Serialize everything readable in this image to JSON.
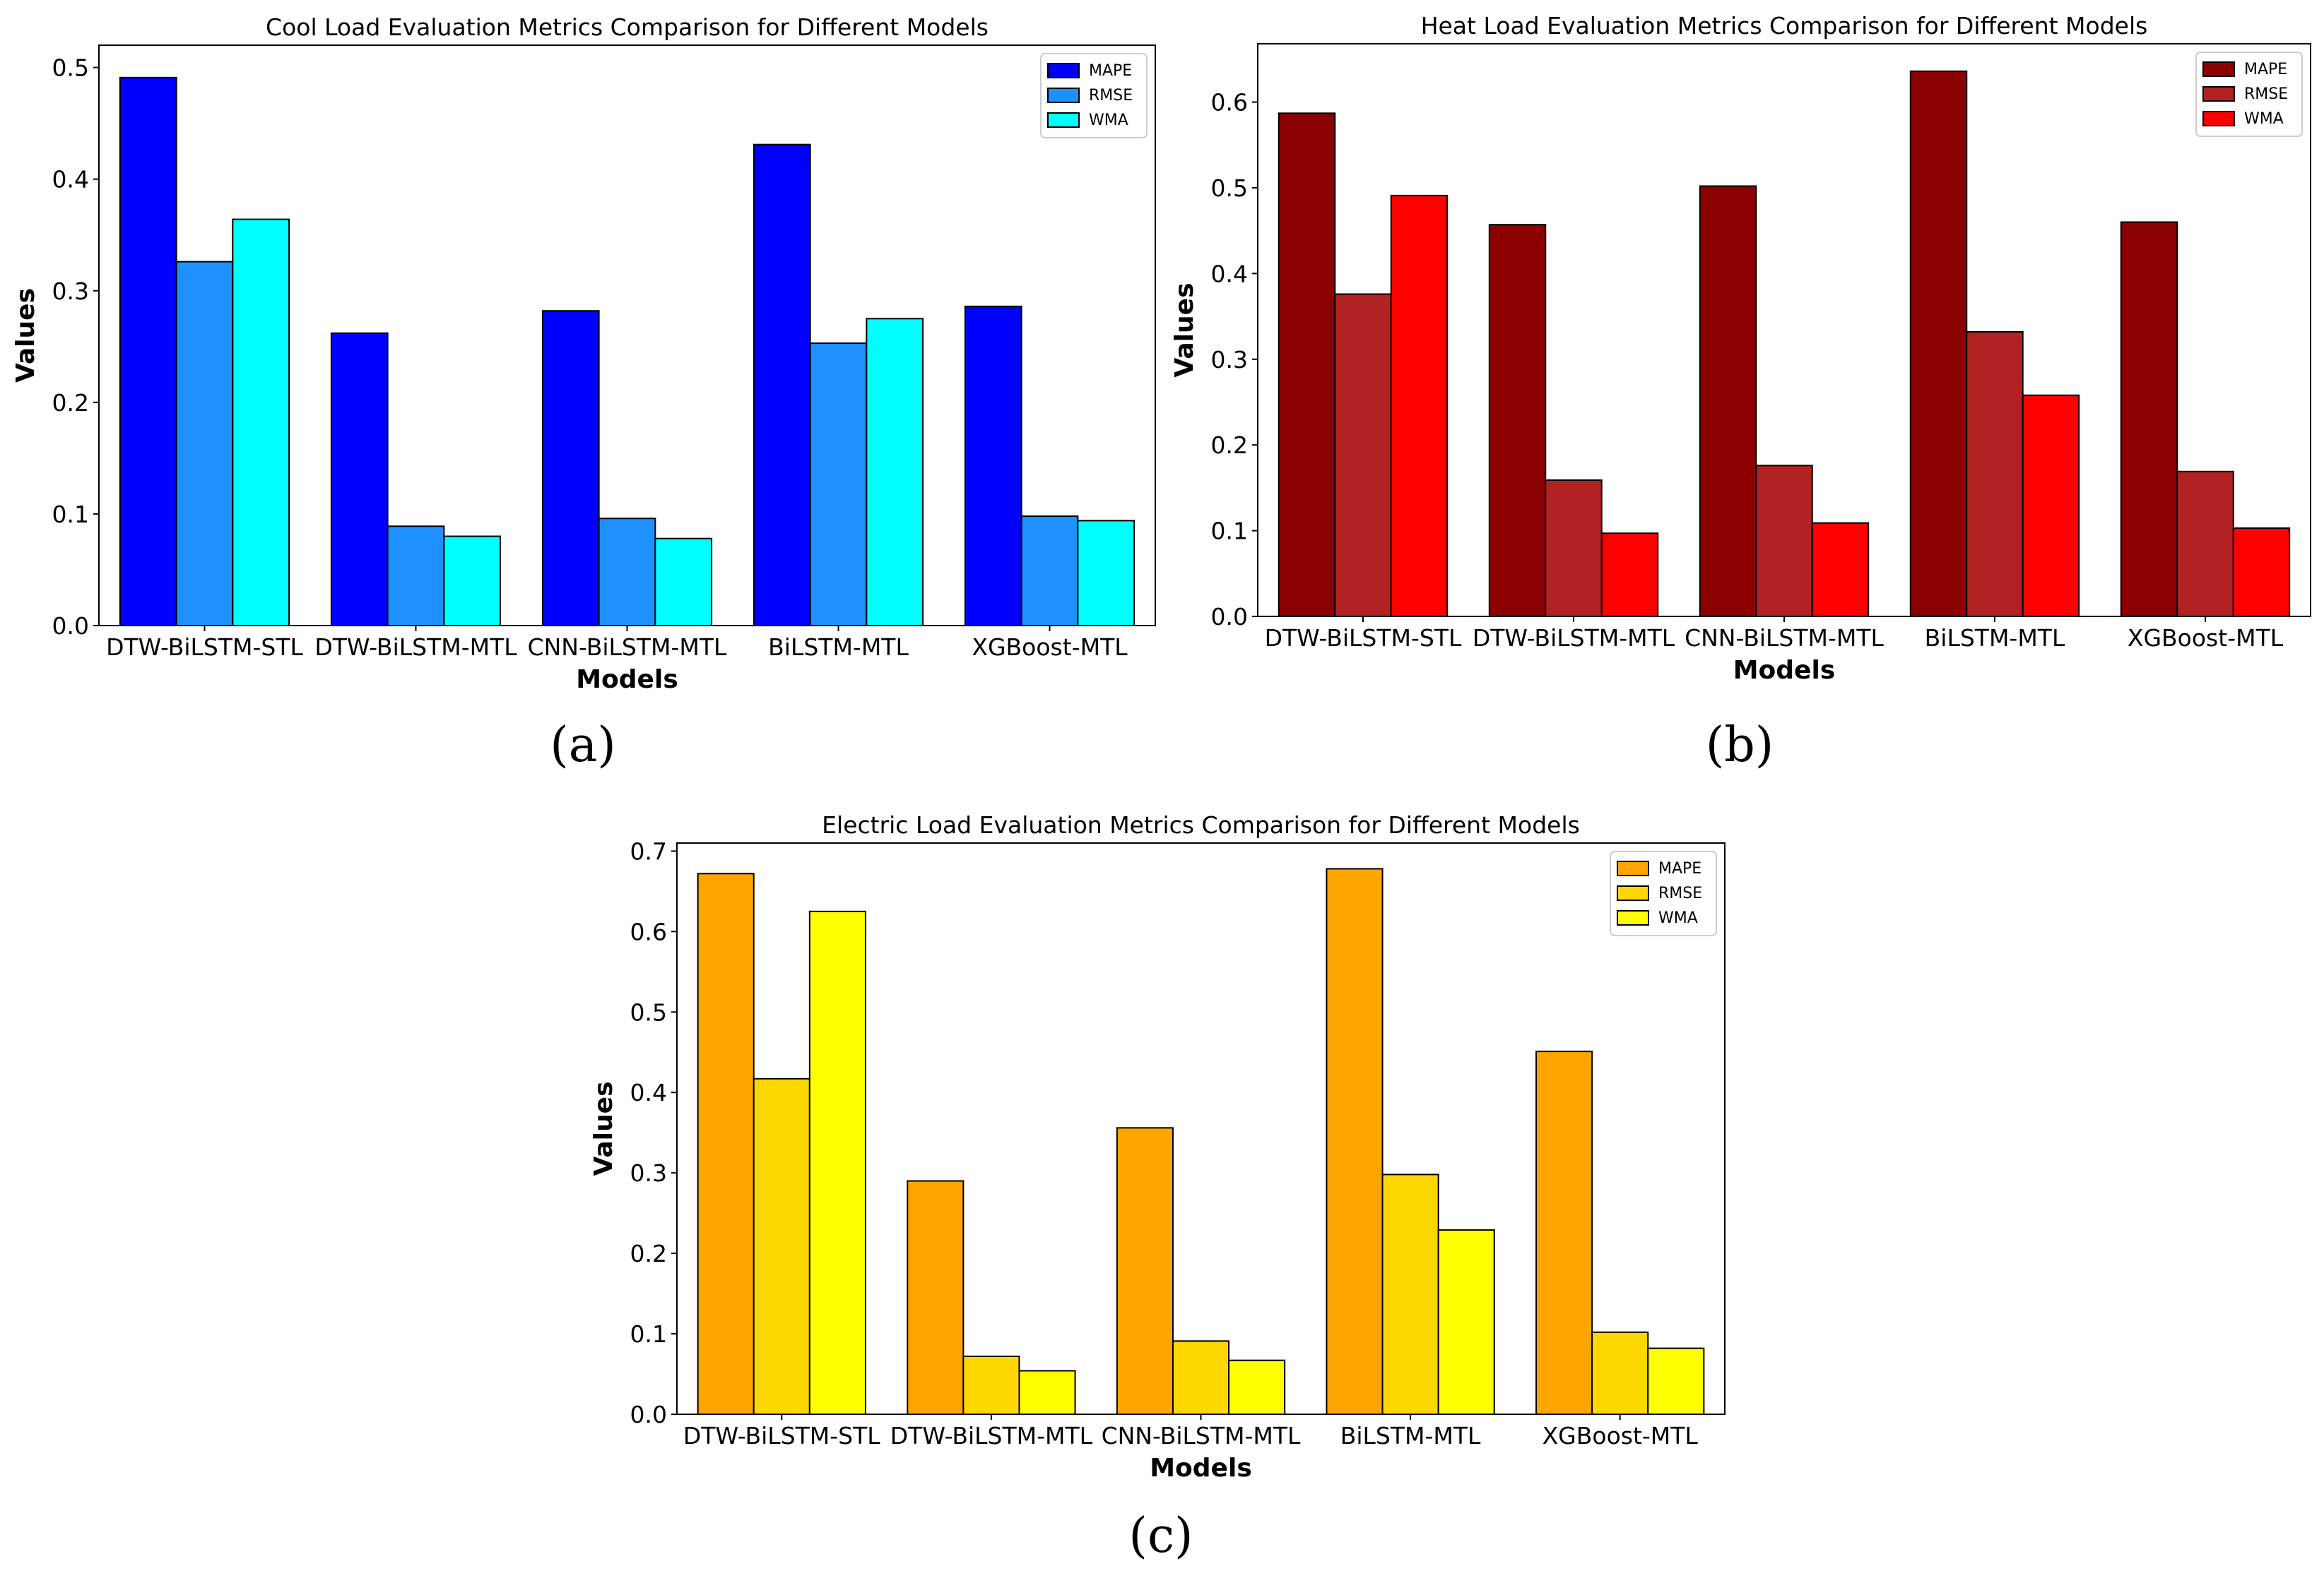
{
  "panels": [
    "(a)",
    "(b)",
    "(c)"
  ],
  "chart_data": [
    {
      "type": "bar",
      "panel": "(a)",
      "title": "Cool Load Evaluation Metrics Comparison for Different Models",
      "xlabel": "Models",
      "ylabel": "Values",
      "ylim": [
        0,
        0.52
      ],
      "yticks": [
        0.0,
        0.1,
        0.2,
        0.3,
        0.4,
        0.5
      ],
      "legend_position": "top-right",
      "categories": [
        "DTW-BiLSTM-STL",
        "DTW-BiLSTM-MTL",
        "CNN-BiLSTM-MTL",
        "BiLSTM-MTL",
        "XGBoost-MTL"
      ],
      "series": [
        {
          "name": "MAPE",
          "color": "#0000ff",
          "values": [
            0.491,
            0.262,
            0.282,
            0.431,
            0.286
          ]
        },
        {
          "name": "RMSE",
          "color": "#1e90ff",
          "values": [
            0.326,
            0.089,
            0.096,
            0.253,
            0.098
          ]
        },
        {
          "name": "WMA",
          "color": "#00ffff",
          "values": [
            0.364,
            0.08,
            0.078,
            0.275,
            0.094
          ]
        }
      ]
    },
    {
      "type": "bar",
      "panel": "(b)",
      "title": "Heat Load Evaluation Metrics Comparison for Different Models",
      "xlabel": "Models",
      "ylabel": "Values",
      "ylim": [
        0,
        0.668
      ],
      "yticks": [
        0.0,
        0.1,
        0.2,
        0.3,
        0.4,
        0.5,
        0.6
      ],
      "legend_position": "top-right",
      "categories": [
        "DTW-BiLSTM-STL",
        "DTW-BiLSTM-MTL",
        "CNN-BiLSTM-MTL",
        "BiLSTM-MTL",
        "XGBoost-MTL"
      ],
      "series": [
        {
          "name": "MAPE",
          "color": "#8b0000",
          "values": [
            0.587,
            0.457,
            0.502,
            0.636,
            0.46
          ]
        },
        {
          "name": "RMSE",
          "color": "#b22222",
          "values": [
            0.376,
            0.159,
            0.176,
            0.332,
            0.169
          ]
        },
        {
          "name": "WMA",
          "color": "#ff0000",
          "values": [
            0.491,
            0.097,
            0.109,
            0.258,
            0.103
          ]
        }
      ]
    },
    {
      "type": "bar",
      "panel": "(c)",
      "title": "Electric Load Evaluation Metrics Comparison for Different Models",
      "xlabel": "Models",
      "ylabel": "Values",
      "ylim": [
        0,
        0.71
      ],
      "yticks": [
        0.0,
        0.1,
        0.2,
        0.3,
        0.4,
        0.5,
        0.6,
        0.7
      ],
      "legend_position": "top-right",
      "categories": [
        "DTW-BiLSTM-STL",
        "DTW-BiLSTM-MTL",
        "CNN-BiLSTM-MTL",
        "BiLSTM-MTL",
        "XGBoost-MTL"
      ],
      "series": [
        {
          "name": "MAPE",
          "color": "#ffa500",
          "values": [
            0.672,
            0.29,
            0.356,
            0.678,
            0.451
          ]
        },
        {
          "name": "RMSE",
          "color": "#ffd700",
          "values": [
            0.417,
            0.072,
            0.091,
            0.298,
            0.102
          ]
        },
        {
          "name": "WMA",
          "color": "#ffff00",
          "values": [
            0.625,
            0.054,
            0.067,
            0.229,
            0.082
          ]
        }
      ]
    }
  ]
}
